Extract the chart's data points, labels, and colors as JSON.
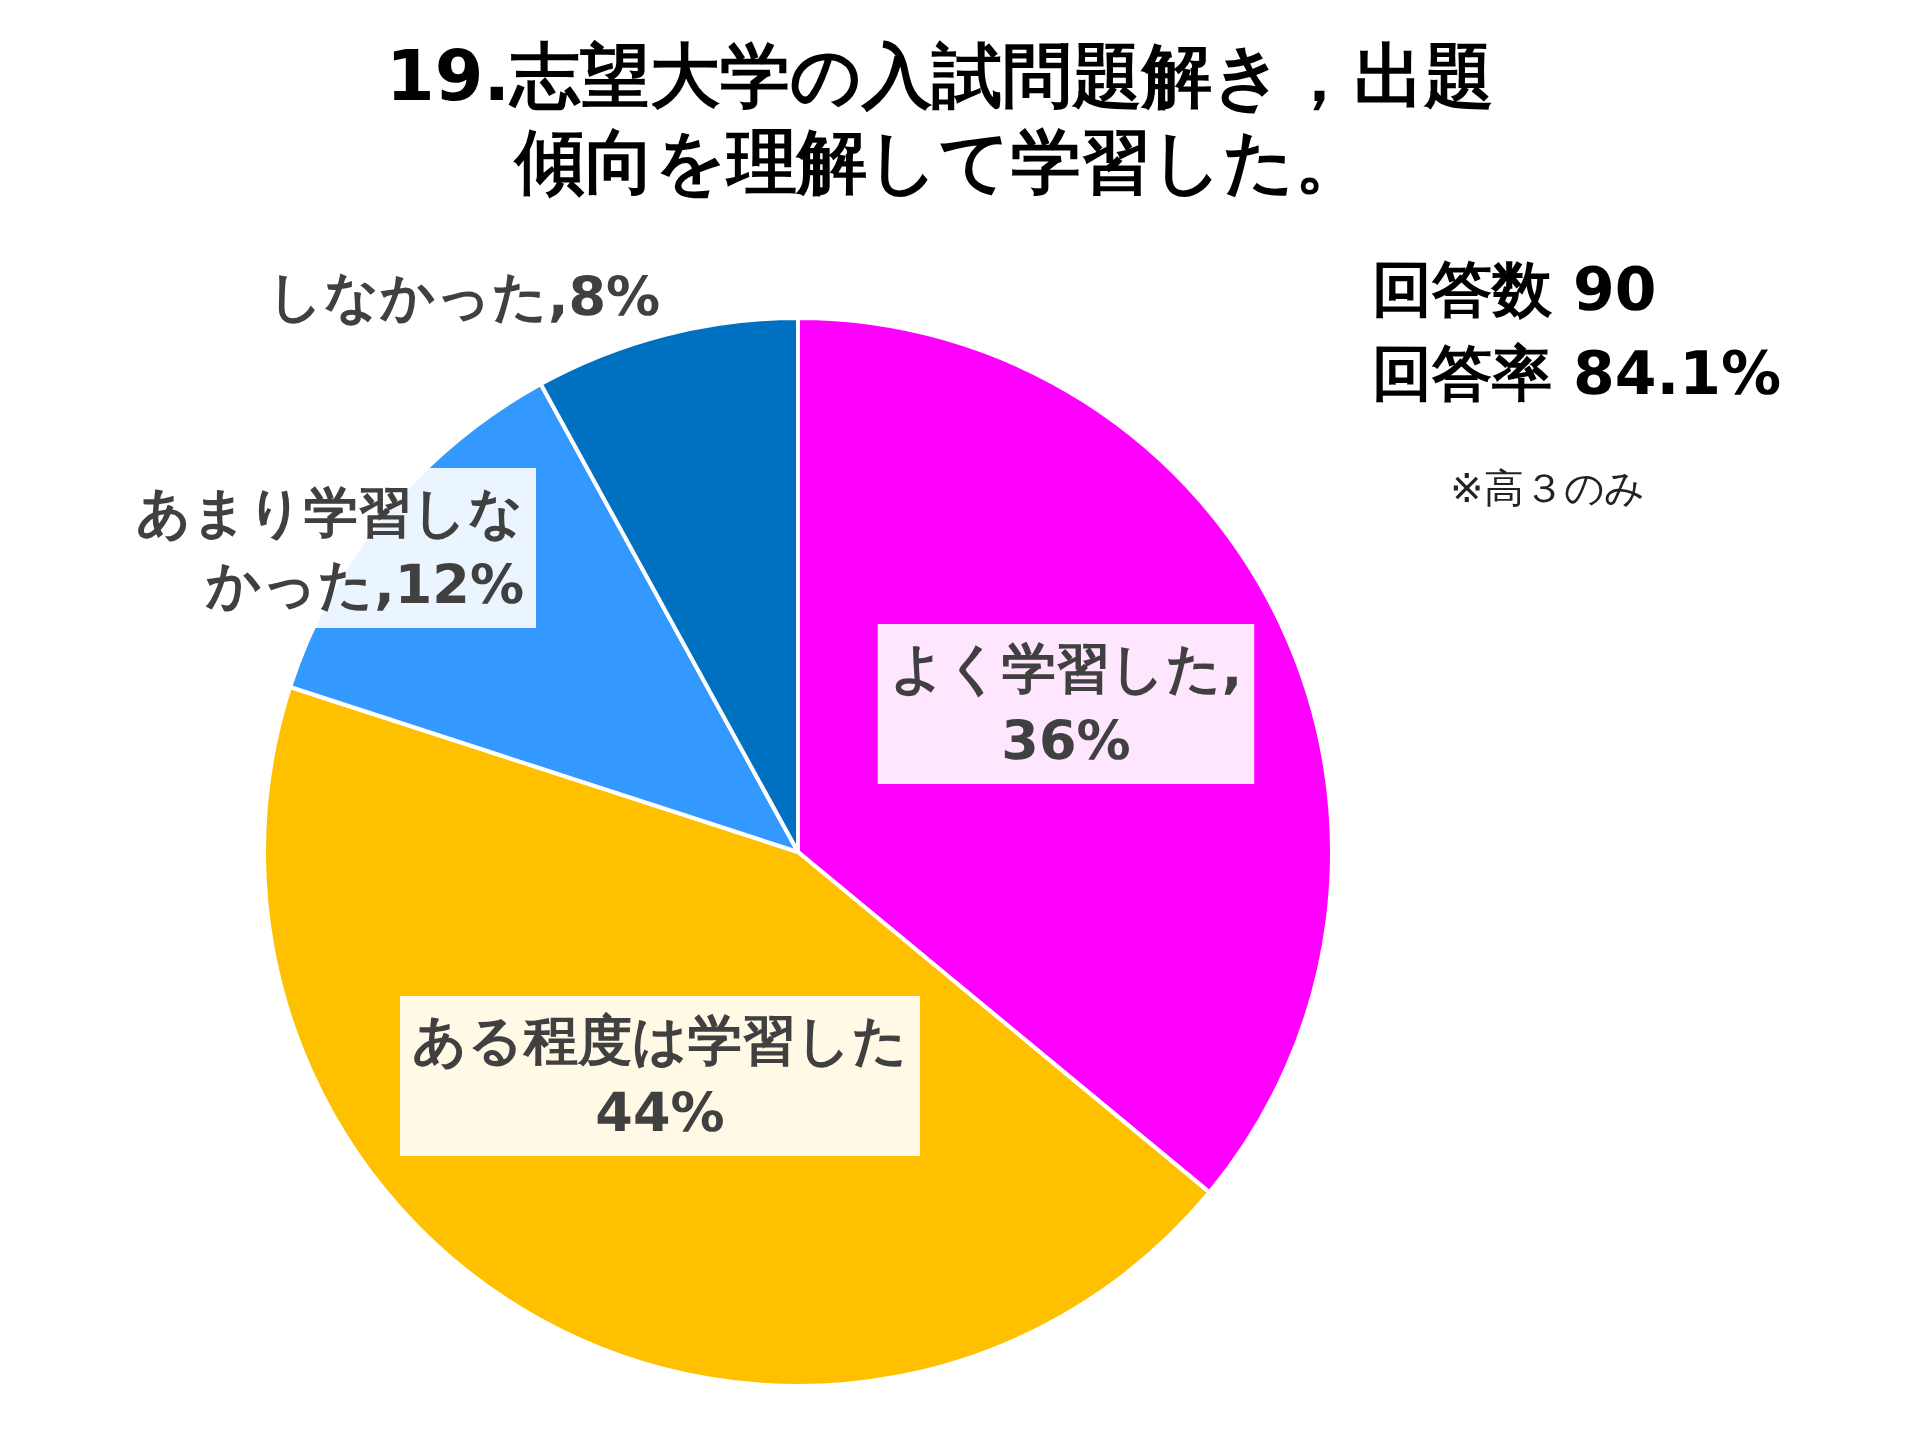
{
  "chart_data": {
    "type": "pie",
    "title": "19.志望大学の入試問題解き，出題傾向を理解して学習した。",
    "categories": [
      "よく学習した",
      "ある程度は学習した",
      "あまり学習しなかった",
      "しなかった"
    ],
    "values": [
      36,
      44,
      12,
      8
    ],
    "colors": [
      "#ff00ff",
      "#ffc000",
      "#3399ff",
      "#0070c0"
    ],
    "value_labels": [
      ",36%",
      "44%",
      ",12%",
      ",8%"
    ],
    "annotations": [
      "回答数 90",
      "回答率 84.1%",
      "※高３のみ"
    ]
  }
}
